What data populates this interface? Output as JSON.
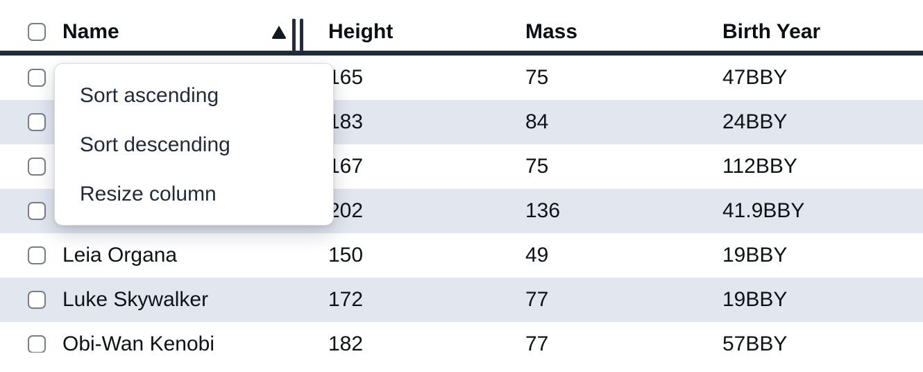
{
  "table": {
    "columns": [
      {
        "id": "name",
        "label": "Name",
        "sorted": "ascending"
      },
      {
        "id": "height",
        "label": "Height"
      },
      {
        "id": "mass",
        "label": "Mass"
      },
      {
        "id": "birth_year",
        "label": "Birth Year"
      }
    ],
    "rows": [
      {
        "name": "",
        "height": "165",
        "mass": "75",
        "birth_year": "47BBY",
        "striped": false
      },
      {
        "name": "",
        "height": "183",
        "mass": "84",
        "birth_year": "24BBY",
        "striped": true
      },
      {
        "name": "",
        "height": "167",
        "mass": "75",
        "birth_year": "112BBY",
        "striped": false
      },
      {
        "name": "",
        "height": "202",
        "mass": "136",
        "birth_year": "41.9BBY",
        "striped": true
      },
      {
        "name": "Leia Organa",
        "height": "150",
        "mass": "49",
        "birth_year": "19BBY",
        "striped": false
      },
      {
        "name": "Luke Skywalker",
        "height": "172",
        "mass": "77",
        "birth_year": "19BBY",
        "striped": true
      },
      {
        "name": "Obi-Wan Kenobi",
        "height": "182",
        "mass": "77",
        "birth_year": "57BBY",
        "striped": false
      }
    ]
  },
  "column_menu": {
    "items": [
      {
        "label": "Sort ascending"
      },
      {
        "label": "Sort descending"
      },
      {
        "label": "Resize column"
      }
    ]
  },
  "icons": {
    "sort_ascending_indicator": "filled-up-triangle",
    "resize_handle": "double-vertical-bars",
    "row_selector": "empty-rounded-checkbox"
  },
  "colors": {
    "header_border": "#222b3a",
    "stripe_row_background": "#e2e6ef",
    "table_text": "#0d1118",
    "menu_text": "#202b3c",
    "checkbox_border": "#767e89",
    "menu_border": "#d7dbe2"
  }
}
